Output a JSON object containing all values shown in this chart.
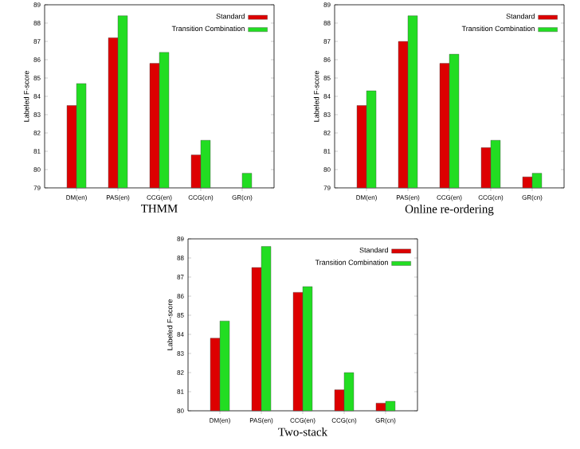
{
  "chart_data": [
    {
      "type": "bar",
      "title": "THMM",
      "ylabel": "Labeled F-score",
      "categories": [
        "DM(en)",
        "PAS(en)",
        "CCG(en)",
        "CCG(cn)",
        "GR(cn)"
      ],
      "ylim": [
        79,
        89
      ],
      "yticks": [
        79,
        80,
        81,
        82,
        83,
        84,
        85,
        86,
        87,
        88,
        89
      ],
      "legend": "top right",
      "grid": false,
      "series": [
        {
          "name": "Standard",
          "color": "#dd0000",
          "values": [
            83.5,
            87.2,
            85.8,
            80.8,
            null
          ]
        },
        {
          "name": "Transition Combination",
          "color": "#22dd22",
          "values": [
            84.7,
            88.4,
            86.4,
            81.6,
            79.8
          ]
        }
      ]
    },
    {
      "type": "bar",
      "title": "Online re-ordering",
      "ylabel": "Labeled F-score",
      "categories": [
        "DM(en)",
        "PAS(en)",
        "CCG(en)",
        "CCG(cn)",
        "GR(cn)"
      ],
      "ylim": [
        79,
        89
      ],
      "yticks": [
        79,
        80,
        81,
        82,
        83,
        84,
        85,
        86,
        87,
        88,
        89
      ],
      "legend": "top right",
      "grid": false,
      "series": [
        {
          "name": "Standard",
          "color": "#dd0000",
          "values": [
            83.5,
            87.0,
            85.8,
            81.2,
            79.6
          ]
        },
        {
          "name": "Transition Combination",
          "color": "#22dd22",
          "values": [
            84.3,
            88.4,
            86.3,
            81.6,
            79.8
          ]
        }
      ]
    },
    {
      "type": "bar",
      "title": "Two-stack",
      "ylabel": "Labeled F-score",
      "categories": [
        "DM(en)",
        "PAS(en)",
        "CCG(en)",
        "CCG(cn)",
        "GR(cn)"
      ],
      "ylim": [
        80,
        89
      ],
      "yticks": [
        80,
        81,
        82,
        83,
        84,
        85,
        86,
        87,
        88,
        89
      ],
      "legend": "top right",
      "grid": false,
      "series": [
        {
          "name": "Standard",
          "color": "#dd0000",
          "values": [
            83.8,
            87.5,
            86.2,
            81.1,
            80.4
          ]
        },
        {
          "name": "Transition Combination",
          "color": "#22dd22",
          "values": [
            84.7,
            88.6,
            86.5,
            82.0,
            80.5
          ]
        }
      ]
    }
  ]
}
